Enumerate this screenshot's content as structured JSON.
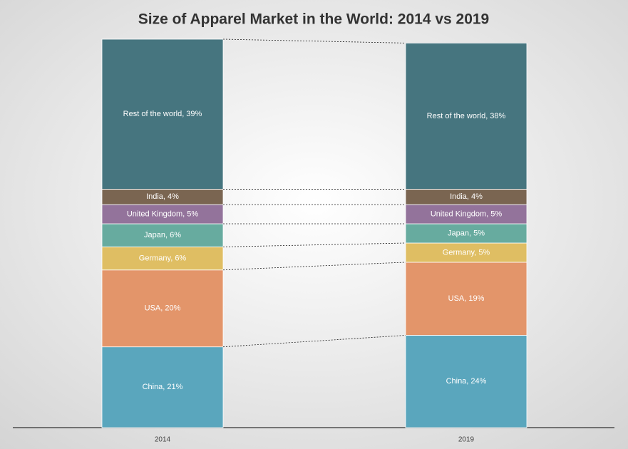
{
  "chart_data": {
    "type": "stacked_bar",
    "title": "Size of Apparel Market in the World: 2014 vs 2019",
    "categories": [
      "2014",
      "2019"
    ],
    "series": [
      {
        "color": "#5aa6bd",
        "values": [
          21,
          24
        ],
        "value_labels": [
          "China, 21%",
          "China, 24%"
        ]
      },
      {
        "color": "#e3956a",
        "values": [
          20,
          19
        ],
        "value_labels": [
          "USA, 20%",
          "USA, 19%"
        ]
      },
      {
        "color": "#dfbe63",
        "values": [
          6,
          5
        ],
        "value_labels": [
          "Germany, 6%",
          "Germany, 5%"
        ]
      },
      {
        "color": "#67ab9f",
        "values": [
          6,
          5
        ],
        "value_labels": [
          "Japan, 6%",
          "Japan, 5%"
        ]
      },
      {
        "color": "#93739b",
        "values": [
          5,
          5
        ],
        "value_labels": [
          "United Kingdom, 5%",
          "United Kingdom, 5%"
        ]
      },
      {
        "color": "#7a6551",
        "values": [
          4,
          4
        ],
        "value_labels": [
          "India, 4%",
          "India, 4%"
        ]
      },
      {
        "color": "#46757f",
        "values": [
          39,
          38
        ],
        "value_labels": [
          "Rest of the world, 39%",
          "Rest of the world, 38%"
        ]
      }
    ],
    "connector_lines": true
  }
}
